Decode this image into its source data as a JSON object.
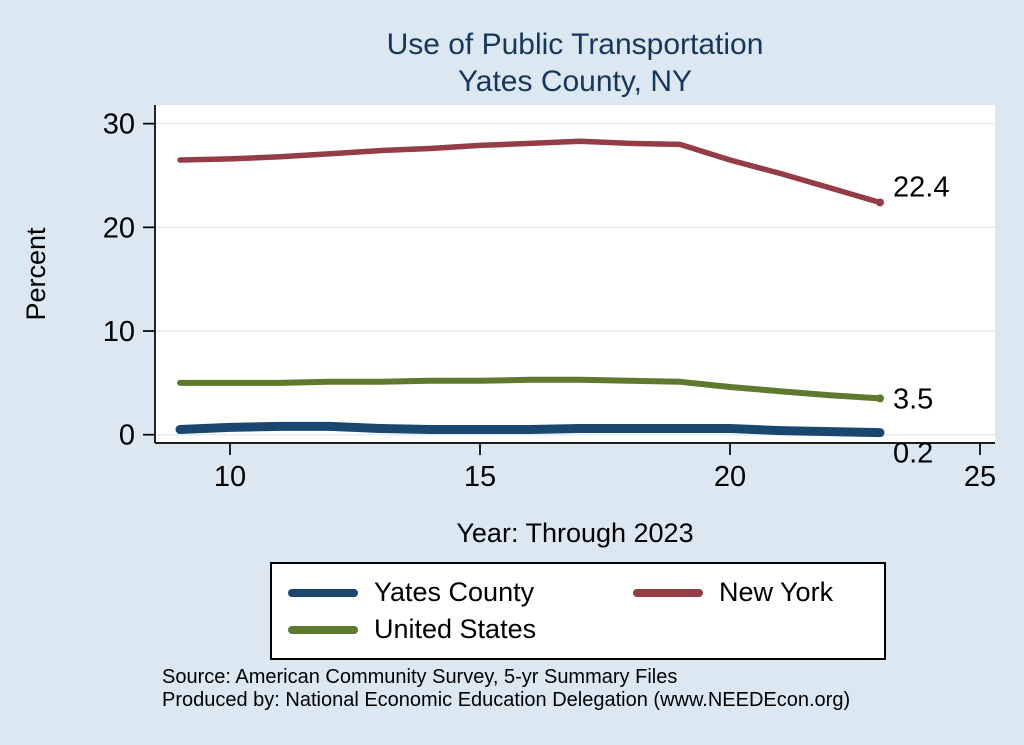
{
  "title": {
    "line1": "Use of Public Transportation",
    "line2": "Yates County, NY"
  },
  "axes": {
    "ylabel": "Percent",
    "xlabel": "Year: Through 2023",
    "x_ticks": [
      10,
      15,
      20,
      25
    ],
    "y_ticks": [
      0,
      10,
      20,
      30
    ]
  },
  "colors": {
    "background": "#dbe8f1",
    "title": "#17365c",
    "gridline": "#e2ecf4",
    "axis": "#000000"
  },
  "legend": [
    {
      "label": "Yates County",
      "color": "#1a476f"
    },
    {
      "label": "New York",
      "color": "#953d46"
    },
    {
      "label": "United States",
      "color": "#5e7a2e"
    }
  ],
  "source": {
    "line1": "Source: American Community Survey, 5-yr Summary Files",
    "line2": "Produced by: National Economic Education Delegation (www.NEEDEcon.org)"
  },
  "chart_data": {
    "type": "line",
    "title": "Use of Public Transportation — Yates County, NY",
    "xlabel": "Year: Through 2023",
    "ylabel": "Percent",
    "x": [
      9,
      10,
      11,
      12,
      13,
      14,
      15,
      16,
      17,
      18,
      19,
      20,
      21,
      22,
      23
    ],
    "xlim": [
      8.5,
      25.3
    ],
    "ylim": [
      -0.8,
      31.8
    ],
    "grid": true,
    "legend_position": "bottom",
    "series": [
      {
        "name": "Yates County",
        "color": "#1a476f",
        "line_width": 9,
        "values": [
          0.5,
          0.7,
          0.8,
          0.8,
          0.6,
          0.5,
          0.5,
          0.5,
          0.6,
          0.6,
          0.6,
          0.6,
          0.4,
          0.3,
          0.2
        ],
        "end_label": "0.2",
        "label_dy": 30
      },
      {
        "name": "New York",
        "color": "#953d46",
        "line_width": 5.5,
        "values": [
          26.5,
          26.6,
          26.8,
          27.1,
          27.4,
          27.6,
          27.9,
          28.1,
          28.3,
          28.1,
          28.0,
          26.5,
          25.2,
          23.8,
          22.4
        ],
        "end_label": "22.4",
        "label_dy": -6
      },
      {
        "name": "United States",
        "color": "#5e7a2e",
        "line_width": 6,
        "values": [
          5.0,
          5.0,
          5.0,
          5.1,
          5.1,
          5.2,
          5.2,
          5.3,
          5.3,
          5.2,
          5.1,
          4.6,
          4.2,
          3.8,
          3.5
        ],
        "end_label": "3.5",
        "label_dy": 10
      }
    ]
  }
}
